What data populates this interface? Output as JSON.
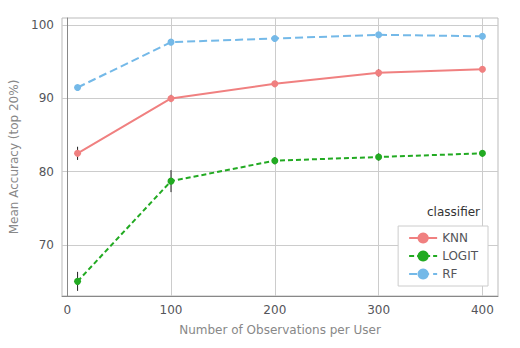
{
  "chart_data": {
    "type": "line",
    "xlabel": "Number of Observations per User",
    "ylabel": "Mean Accuracy (top 20%)",
    "x": [
      10,
      100,
      200,
      300,
      400
    ],
    "series": [
      {
        "name": "KNN",
        "color": "#F08080",
        "values": [
          82.5,
          90.0,
          92.0,
          93.5,
          94.0
        ],
        "yerr": [
          0.9,
          0.5,
          0.4,
          0.5,
          0.3
        ],
        "line_style": "solid",
        "marker": "circle"
      },
      {
        "name": "LOGIT",
        "color": "#22AA22",
        "values": [
          65.0,
          78.7,
          81.5,
          82.0,
          82.5
        ],
        "yerr": [
          1.3,
          1.5,
          0.5,
          0.5,
          0.4
        ],
        "line_style": "dashed",
        "marker": "circle"
      },
      {
        "name": "RF",
        "color": "#74B9E8",
        "values": [
          91.5,
          97.7,
          98.2,
          98.7,
          98.5
        ],
        "yerr": [
          0.2,
          0.2,
          0.15,
          0.15,
          0.15
        ],
        "line_style": "dashed",
        "marker": "circle"
      }
    ],
    "xlim": [
      -5,
      415
    ],
    "xticks": [
      0,
      100,
      200,
      300,
      400
    ],
    "ylim": [
      63,
      101
    ],
    "yticks": [
      70,
      80,
      90,
      100
    ],
    "grid": true,
    "legend": "lower right",
    "legend_title": "classifier"
  }
}
